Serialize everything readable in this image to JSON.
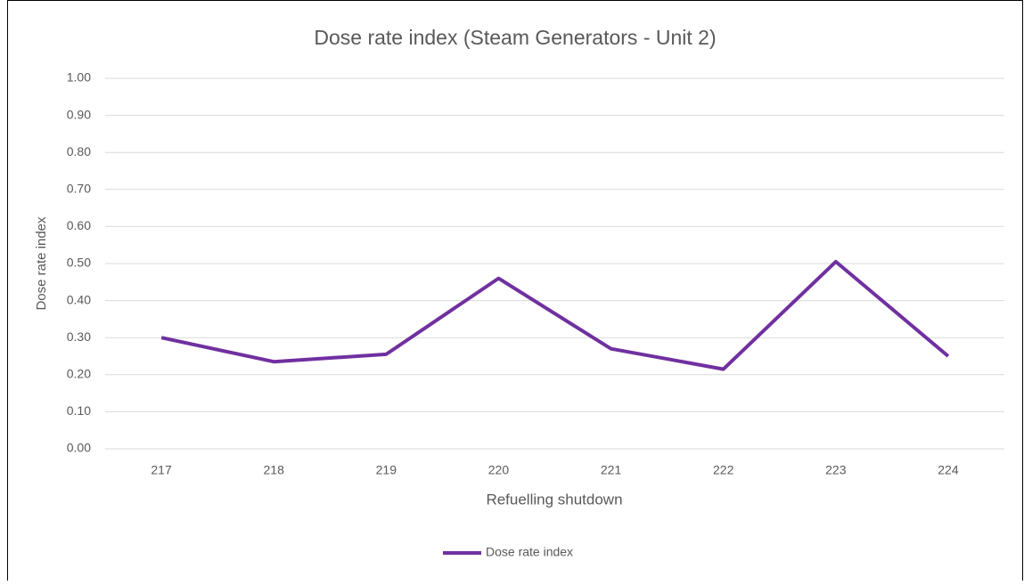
{
  "chart_data": {
    "type": "line",
    "title": "Dose rate index (Steam Generators - Unit 2)",
    "x_label": "Refuelling shutdown",
    "y_label": "Dose rate index",
    "categories": [
      "217",
      "218",
      "219",
      "220",
      "221",
      "222",
      "223",
      "224"
    ],
    "series": [
      {
        "name": "Dose rate index",
        "color": "#7030a0",
        "values": [
          0.3,
          0.235,
          0.255,
          0.46,
          0.27,
          0.215,
          0.505,
          0.25
        ]
      }
    ],
    "ylim": [
      0,
      1
    ],
    "yticks": [
      {
        "value": 0,
        "label": "0.00"
      },
      {
        "value": 0.1,
        "label": "0.10"
      },
      {
        "value": 0.2,
        "label": "0.20"
      },
      {
        "value": 0.3,
        "label": "0.30"
      },
      {
        "value": 0.4,
        "label": "0.40"
      },
      {
        "value": 0.5,
        "label": "0.50"
      },
      {
        "value": 0.6,
        "label": "0.60"
      },
      {
        "value": 0.7,
        "label": "0.70"
      },
      {
        "value": 0.8,
        "label": "0.80"
      },
      {
        "value": 0.9,
        "label": "0.90"
      },
      {
        "value": 1,
        "label": "1.00"
      }
    ],
    "grid": true,
    "legend": "bottom"
  }
}
